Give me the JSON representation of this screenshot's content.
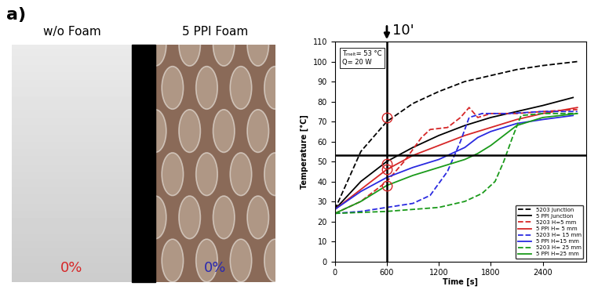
{
  "panel_label": "a)",
  "photos": [
    {
      "title": "w/o Foam",
      "value_label": "0%",
      "label_color": "#d62728"
    },
    {
      "title": "5 PPI Foam",
      "value_label": "0%",
      "label_color": "#2a2ab0"
    }
  ],
  "chart_data": {
    "type": "line",
    "x_label": "Time [s]",
    "y_label": "Temperature [°C]",
    "annotations": [
      "Tₘₑₗₜ= 53 °C",
      "Q= 20 W"
    ],
    "time_marker": {
      "x": 600,
      "label": "10'"
    },
    "melt_line": 53,
    "highlight_points": {
      "x": [
        600,
        600,
        600,
        600
      ],
      "y": [
        72,
        49,
        46,
        38
      ]
    },
    "xlim": [
      0,
      2900
    ],
    "xticks": [
      0,
      600,
      1200,
      1800,
      2400
    ],
    "ylim": [
      0,
      110
    ],
    "yticks": [
      0,
      10,
      20,
      30,
      40,
      50,
      60,
      70,
      80,
      90,
      100,
      110
    ],
    "grid": false,
    "legend": "lower right",
    "series": [
      {
        "name": "5203 Junction",
        "color": "#000000",
        "line_style": "dashed",
        "x": [
          0,
          300,
          600,
          900,
          1200,
          1500,
          1800,
          2100,
          2400,
          2800
        ],
        "values": [
          26,
          55,
          70,
          79,
          85,
          90,
          93,
          96,
          98,
          100
        ]
      },
      {
        "name": "5 PPI Junction",
        "color": "#000000",
        "line_style": "solid",
        "x": [
          0,
          300,
          600,
          900,
          1200,
          1500,
          1800,
          2100,
          2400,
          2750
        ],
        "values": [
          26,
          40,
          50,
          57,
          63,
          68,
          72,
          75,
          78,
          82
        ]
      },
      {
        "name": "5203 H=5 mm",
        "color": "#d62728",
        "line_style": "dashed",
        "x": [
          0,
          300,
          600,
          800,
          1000,
          1100,
          1300,
          1450,
          1550,
          1650,
          1800,
          2100,
          2400,
          2800
        ],
        "values": [
          24,
          30,
          40,
          50,
          62,
          66,
          67,
          72,
          77,
          72,
          74,
          74,
          75,
          76
        ]
      },
      {
        "name": "5 PPI H= 5 mm",
        "color": "#d62728",
        "line_style": "solid",
        "x": [
          0,
          300,
          600,
          900,
          1200,
          1500,
          1800,
          2100,
          2400,
          2800
        ],
        "values": [
          26,
          36,
          46,
          53,
          58,
          63,
          67,
          71,
          74,
          77
        ]
      },
      {
        "name": "5203 H= 15 mm",
        "color": "#2a2ae0",
        "line_style": "dashed",
        "x": [
          0,
          300,
          600,
          900,
          1100,
          1300,
          1450,
          1550,
          1700,
          2000,
          2400,
          2800
        ],
        "values": [
          24,
          25,
          27,
          29,
          33,
          45,
          60,
          72,
          74,
          74,
          75,
          75
        ]
      },
      {
        "name": "5 PPI H=15 mm",
        "color": "#2a2ae0",
        "line_style": "solid",
        "x": [
          0,
          300,
          600,
          900,
          1200,
          1500,
          1650,
          1800,
          2100,
          2400,
          2750
        ],
        "values": [
          26,
          35,
          42,
          47,
          51,
          57,
          62,
          65,
          69,
          71,
          73
        ]
      },
      {
        "name": "5203 H= 25 mm",
        "color": "#1a9a1a",
        "line_style": "dashed",
        "x": [
          0,
          600,
          1200,
          1500,
          1700,
          1850,
          1950,
          2050,
          2150,
          2400,
          2800
        ],
        "values": [
          24,
          25,
          27,
          30,
          34,
          40,
          50,
          62,
          73,
          74,
          74
        ]
      },
      {
        "name": "5 PPI H=25 mm",
        "color": "#1a9a1a",
        "line_style": "solid",
        "x": [
          0,
          300,
          600,
          900,
          1200,
          1500,
          1650,
          1800,
          1950,
          2100,
          2400,
          2800
        ],
        "values": [
          24,
          30,
          38,
          43,
          47,
          51,
          54,
          58,
          63,
          68,
          72,
          74
        ]
      }
    ]
  }
}
